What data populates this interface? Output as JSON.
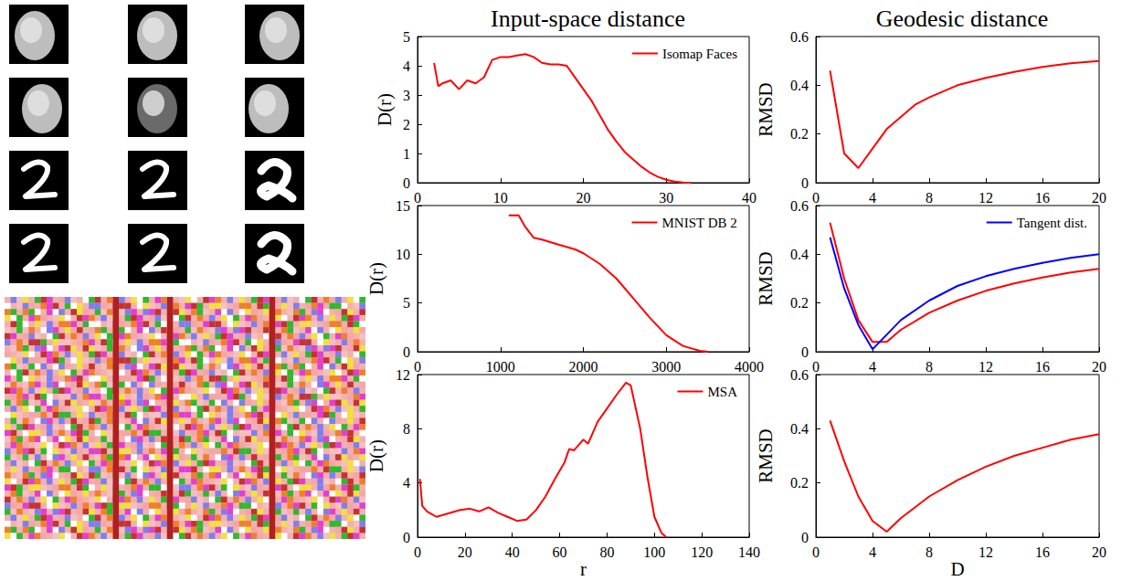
{
  "chart_data": [
    {
      "type": "line",
      "title": "Input-space distance",
      "ylabel": "D(r)",
      "xlim": [
        0,
        40
      ],
      "xticks": [
        0,
        10,
        20,
        30,
        40
      ],
      "ylim": [
        0,
        5
      ],
      "yticks": [
        0,
        1,
        2,
        3,
        4,
        5
      ],
      "grid": false,
      "legend": "upper right",
      "x": [
        2,
        2.5,
        3,
        4,
        5,
        6,
        7,
        8,
        9,
        10,
        11,
        12,
        13,
        14,
        15,
        16,
        17,
        18,
        19,
        20,
        21,
        22,
        23,
        24,
        25,
        26,
        27,
        28,
        29,
        30,
        31,
        32,
        33
      ],
      "series": [
        {
          "name": "Isomap Faces",
          "color": "#ff0000",
          "values": [
            4.1,
            3.3,
            3.4,
            3.5,
            3.2,
            3.5,
            3.4,
            3.6,
            4.2,
            4.3,
            4.3,
            4.35,
            4.4,
            4.3,
            4.1,
            4.05,
            4.05,
            4.0,
            3.6,
            3.2,
            2.8,
            2.3,
            1.8,
            1.4,
            1.05,
            0.8,
            0.55,
            0.35,
            0.2,
            0.1,
            0.04,
            0.01,
            0
          ]
        }
      ]
    },
    {
      "type": "line",
      "ylabel": "D(r)",
      "xlim": [
        0,
        4000
      ],
      "xticks": [
        0,
        1000,
        2000,
        3000,
        4000
      ],
      "ylim": [
        0,
        15
      ],
      "yticks": [
        0,
        5,
        10,
        15
      ],
      "grid": false,
      "legend": "upper right",
      "x": [
        1100,
        1220,
        1300,
        1400,
        1500,
        1700,
        1900,
        2000,
        2200,
        2400,
        2600,
        2800,
        3000,
        3200,
        3400,
        3500
      ],
      "series": [
        {
          "name": "MNIST DB 2",
          "color": "#ff0000",
          "values": [
            14,
            14,
            12.8,
            11.7,
            11.5,
            11,
            10.5,
            10.1,
            9,
            7.5,
            5.5,
            3.5,
            1.7,
            0.6,
            0.1,
            0
          ]
        }
      ]
    },
    {
      "type": "line",
      "ylabel": "D(r)",
      "xlabel": "r",
      "xlim": [
        0,
        140
      ],
      "xticks": [
        0,
        20,
        40,
        60,
        80,
        100,
        120,
        140
      ],
      "ylim": [
        0,
        12
      ],
      "yticks": [
        0,
        4,
        8,
        12
      ],
      "grid": false,
      "legend": "upper right",
      "x": [
        1,
        2,
        4,
        6,
        8,
        10,
        14,
        18,
        22,
        26,
        30,
        34,
        38,
        42,
        46,
        50,
        54,
        58,
        62,
        64,
        66,
        70,
        72,
        76,
        80,
        84,
        88,
        90,
        94,
        97,
        100,
        103,
        105
      ],
      "series": [
        {
          "name": "MSA",
          "color": "#ff0000",
          "values": [
            4.3,
            2.3,
            1.9,
            1.7,
            1.5,
            1.6,
            1.8,
            2.0,
            2.1,
            1.9,
            2.2,
            1.8,
            1.5,
            1.2,
            1.3,
            2.0,
            3.0,
            4.3,
            5.5,
            6.5,
            6.4,
            7.2,
            6.9,
            8.5,
            9.5,
            10.5,
            11.4,
            11.2,
            8.0,
            4.5,
            1.5,
            0.3,
            0
          ]
        }
      ]
    },
    {
      "type": "line",
      "title": "Geodesic distance",
      "ylabel": "RMSD",
      "xlim": [
        0,
        20
      ],
      "xticks": [
        0,
        4,
        8,
        12,
        16,
        20
      ],
      "ylim": [
        0,
        0.6
      ],
      "yticks": [
        0,
        0.2,
        0.4,
        0.6
      ],
      "grid": false,
      "x": [
        1,
        2,
        3,
        4,
        5,
        6,
        7,
        8,
        10,
        12,
        14,
        16,
        18,
        20
      ],
      "series": [
        {
          "color": "#ff0000",
          "values": [
            0.46,
            0.12,
            0.06,
            0.14,
            0.22,
            0.27,
            0.32,
            0.35,
            0.4,
            0.43,
            0.455,
            0.475,
            0.49,
            0.5
          ]
        }
      ]
    },
    {
      "type": "line",
      "ylabel": "RMSD",
      "xlim": [
        0,
        20
      ],
      "xticks": [
        0,
        4,
        8,
        12,
        16,
        20
      ],
      "ylim": [
        0,
        0.6
      ],
      "yticks": [
        0,
        0.2,
        0.4,
        0.6
      ],
      "grid": false,
      "legend": "upper right",
      "x": [
        1,
        2,
        3,
        4,
        5,
        6,
        8,
        10,
        12,
        14,
        16,
        18,
        20
      ],
      "series": [
        {
          "color": "#ff0000",
          "values": [
            0.53,
            0.3,
            0.13,
            0.04,
            0.04,
            0.09,
            0.16,
            0.21,
            0.25,
            0.28,
            0.305,
            0.325,
            0.34
          ]
        },
        {
          "name": "Tangent dist.",
          "color": "#0000ff",
          "values": [
            0.47,
            0.26,
            0.11,
            0.01,
            0.07,
            0.13,
            0.21,
            0.27,
            0.31,
            0.34,
            0.365,
            0.385,
            0.4
          ]
        }
      ]
    },
    {
      "type": "line",
      "ylabel": "RMSD",
      "xlabel": "D",
      "xlim": [
        0,
        20
      ],
      "xticks": [
        0,
        4,
        8,
        12,
        16,
        20
      ],
      "ylim": [
        0,
        0.6
      ],
      "yticks": [
        0,
        0.2,
        0.4,
        0.6
      ],
      "grid": false,
      "x": [
        1,
        2,
        3,
        4,
        5,
        6,
        8,
        10,
        12,
        14,
        16,
        18,
        20
      ],
      "series": [
        {
          "color": "#ff0000",
          "values": [
            0.43,
            0.28,
            0.15,
            0.06,
            0.02,
            0.07,
            0.15,
            0.21,
            0.26,
            0.3,
            0.33,
            0.36,
            0.38
          ]
        }
      ]
    }
  ]
}
